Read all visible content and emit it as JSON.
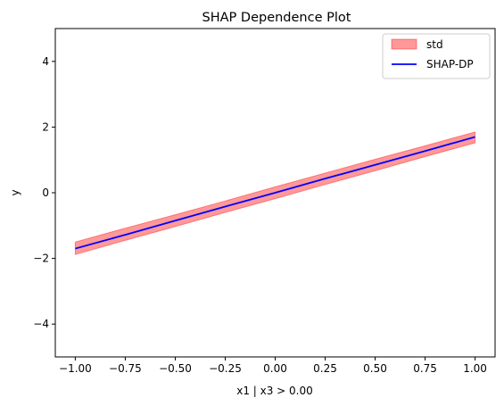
{
  "chart_data": {
    "type": "line",
    "title": "SHAP Dependence Plot",
    "xlabel": "x1 | x3 > 0.00",
    "ylabel": "y",
    "xlim": [
      -1.1,
      1.1
    ],
    "ylim": [
      -5,
      5
    ],
    "x_ticks": [
      -1.0,
      -0.75,
      -0.5,
      -0.25,
      0.0,
      0.25,
      0.5,
      0.75,
      1.0
    ],
    "x_tick_labels": [
      "−1.00",
      "−0.75",
      "−0.50",
      "−0.25",
      "0.00",
      "0.25",
      "0.50",
      "0.75",
      "1.00"
    ],
    "y_ticks": [
      -4,
      -2,
      0,
      2,
      4
    ],
    "y_tick_labels": [
      "−4",
      "−2",
      "0",
      "2",
      "4"
    ],
    "grid": false,
    "legend_position": "top-right",
    "series": [
      {
        "name": "SHAP-DP",
        "kind": "line",
        "color": "#0000ff",
        "x": [
          -1.0,
          -0.75,
          -0.5,
          -0.25,
          0.0,
          0.25,
          0.5,
          0.75,
          1.0
        ],
        "y": [
          -1.7,
          -1.28,
          -0.85,
          -0.42,
          0.0,
          0.43,
          0.85,
          1.27,
          1.7
        ]
      },
      {
        "name": "std",
        "kind": "band",
        "color": "#ff0000",
        "opacity": 0.4,
        "x": [
          -1.0,
          -0.75,
          -0.5,
          -0.25,
          0.0,
          0.25,
          0.5,
          0.75,
          1.0
        ],
        "lower": [
          -1.88,
          -1.45,
          -1.03,
          -0.6,
          -0.18,
          0.25,
          0.67,
          1.1,
          1.52
        ],
        "upper": [
          -1.5,
          -1.08,
          -0.67,
          -0.25,
          0.18,
          0.6,
          1.02,
          1.43,
          1.85
        ]
      }
    ]
  }
}
